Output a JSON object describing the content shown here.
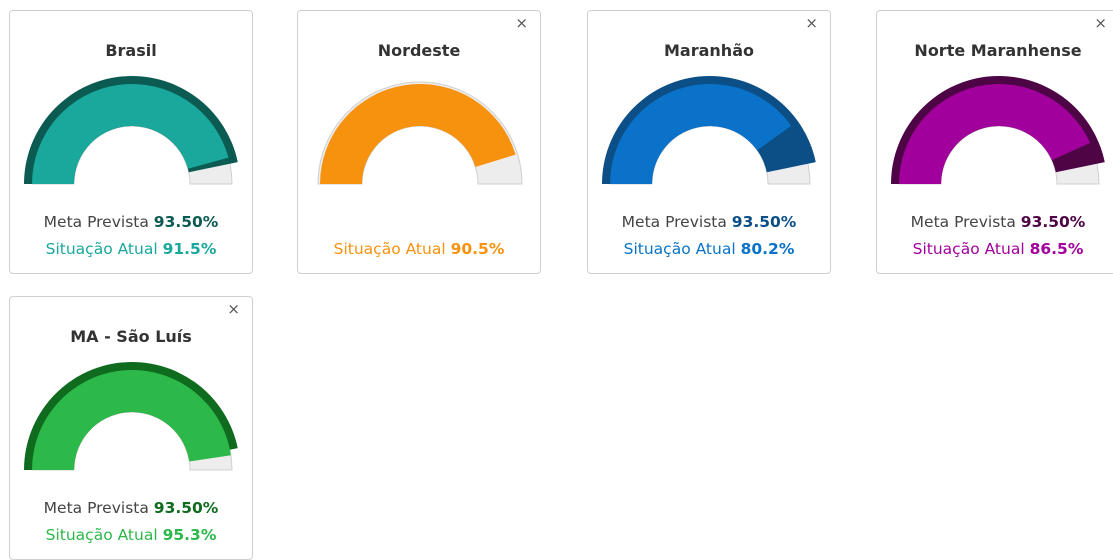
{
  "range": [
    0,
    100
  ],
  "cards": [
    {
      "title": "Brasil",
      "meta_label": "Meta Prevista",
      "meta": 93.5,
      "meta_text": "93.50%",
      "current_label": "Situação Atual",
      "value": 91.5,
      "value_label": "91.5%",
      "color": "#1aa89c",
      "dark": "#0b5b52"
    },
    {
      "title": "Nordeste",
      "close": "×",
      "current_label": "Situação Atual",
      "value": 90.5,
      "value_label": "90.5%",
      "color": "#f7920f"
    },
    {
      "title": "Maranhão",
      "close": "×",
      "meta_label": "Meta Prevista",
      "meta": 93.5,
      "meta_text": "93.50%",
      "current_label": "Situação Atual",
      "value": 80.2,
      "value_label": "80.2%",
      "color": "#0a73c9",
      "dark": "#0c4f86"
    },
    {
      "title": "Norte Maranhense",
      "close": "×",
      "meta_label": "Meta Prevista",
      "meta": 93.5,
      "meta_text": "93.50%",
      "current_label": "Situação Atual",
      "value": 86.5,
      "value_label": "86.5%",
      "color": "#a2009c",
      "dark": "#4e0546"
    },
    {
      "title": "MA - São Luís",
      "close": "×",
      "meta_label": "Meta Prevista",
      "meta": 93.5,
      "meta_text": "93.50%",
      "current_label": "Situação Atual",
      "value": 95.3,
      "value_label": "95.3%",
      "color": "#2db84a",
      "dark": "#0f6b1e"
    }
  ]
}
